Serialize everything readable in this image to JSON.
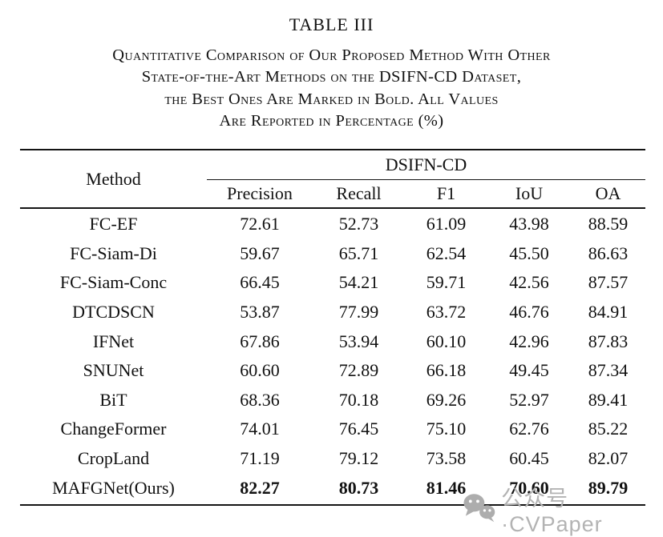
{
  "title": "TABLE III",
  "caption": {
    "lines": [
      "Quantitative Comparison of Our Proposed Method With Other",
      "State-of-the-Art Methods on the DSIFN-CD Dataset,",
      "the Best Ones Are Marked in Bold. All Values",
      "Are Reported in Percentage (%)"
    ]
  },
  "table": {
    "method_header": "Method",
    "group_header": "DSIFN-CD",
    "columns": [
      "Precision",
      "Recall",
      "F1",
      "IoU",
      "OA"
    ],
    "rows": [
      {
        "method": "FC-EF",
        "values": [
          "72.61",
          "52.73",
          "61.09",
          "43.98",
          "88.59"
        ],
        "bold": false
      },
      {
        "method": "FC-Siam-Di",
        "values": [
          "59.67",
          "65.71",
          "62.54",
          "45.50",
          "86.63"
        ],
        "bold": false
      },
      {
        "method": "FC-Siam-Conc",
        "values": [
          "66.45",
          "54.21",
          "59.71",
          "42.56",
          "87.57"
        ],
        "bold": false
      },
      {
        "method": "DTCDSCN",
        "values": [
          "53.87",
          "77.99",
          "63.72",
          "46.76",
          "84.91"
        ],
        "bold": false
      },
      {
        "method": "IFNet",
        "values": [
          "67.86",
          "53.94",
          "60.10",
          "42.96",
          "87.83"
        ],
        "bold": false
      },
      {
        "method": "SNUNet",
        "values": [
          "60.60",
          "72.89",
          "66.18",
          "49.45",
          "87.34"
        ],
        "bold": false
      },
      {
        "method": "BiT",
        "values": [
          "68.36",
          "70.18",
          "69.26",
          "52.97",
          "89.41"
        ],
        "bold": false
      },
      {
        "method": "ChangeFormer",
        "values": [
          "74.01",
          "76.45",
          "75.10",
          "62.76",
          "85.22"
        ],
        "bold": false
      },
      {
        "method": "CropLand",
        "values": [
          "71.19",
          "79.12",
          "73.58",
          "60.45",
          "82.07"
        ],
        "bold": false
      },
      {
        "method": "MAFGNet(Ours)",
        "values": [
          "82.27",
          "80.73",
          "81.46",
          "70.60",
          "89.79"
        ],
        "bold": true
      }
    ]
  },
  "watermark": {
    "icon": "wechat-icon",
    "text": "公众号·CVPaper",
    "color": "#b3b3b3"
  },
  "colors": {
    "text": "#111111",
    "rule": "#141414",
    "background": "#ffffff"
  }
}
